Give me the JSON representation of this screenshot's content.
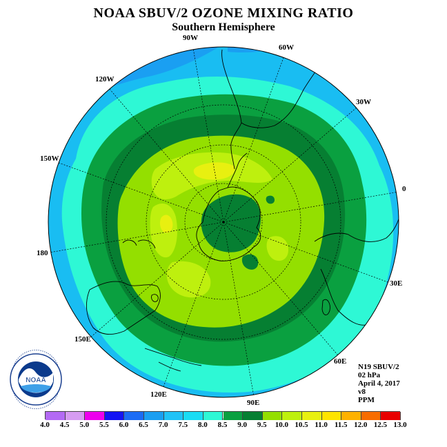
{
  "title": "NOAA SBUV/2 OZONE MIXING RATIO",
  "subtitle": "Southern Hemisphere",
  "longitude_labels": [
    "90W",
    "60W",
    "30W",
    "0",
    "30E",
    "60E",
    "90E",
    "120E",
    "150E",
    "180",
    "150W",
    "120W"
  ],
  "info": {
    "satellite": "N19 SBUV/2",
    "level": "02 hPa",
    "date": "April 4, 2017",
    "version": "v8",
    "units": "PPM"
  },
  "colorbar": {
    "ticks": [
      "4.0",
      "4.5",
      "5.0",
      "5.5",
      "6.0",
      "6.5",
      "7.0",
      "7.5",
      "8.0",
      "8.5",
      "9.0",
      "9.5",
      "10.0",
      "10.5",
      "11.0",
      "11.5",
      "12.0",
      "12.5",
      "13.0"
    ],
    "colors": [
      "#b36af4",
      "#d69cf2",
      "#ee00ee",
      "#1414f4",
      "#1b6cf5",
      "#1a9ff2",
      "#20c3f7",
      "#19dcf4",
      "#2ef8d5",
      "#0aa040",
      "#067f32",
      "#94df00",
      "#bef00e",
      "#e8f010",
      "#ffe400",
      "#ffb200",
      "#f86d00",
      "#e80000",
      "#8e5a3c"
    ]
  },
  "map_colors": {
    "ring_outer": "#19bdf2",
    "ring_7_5": "#2ef8d5",
    "ring_8_0": "#0aa040",
    "ring_8_5": "#067f32",
    "ring_9_5": "#94df00",
    "ring_10_0": "#bef00e",
    "ring_10_5": "#e8f010"
  },
  "logo": {
    "text": "NOAA"
  }
}
